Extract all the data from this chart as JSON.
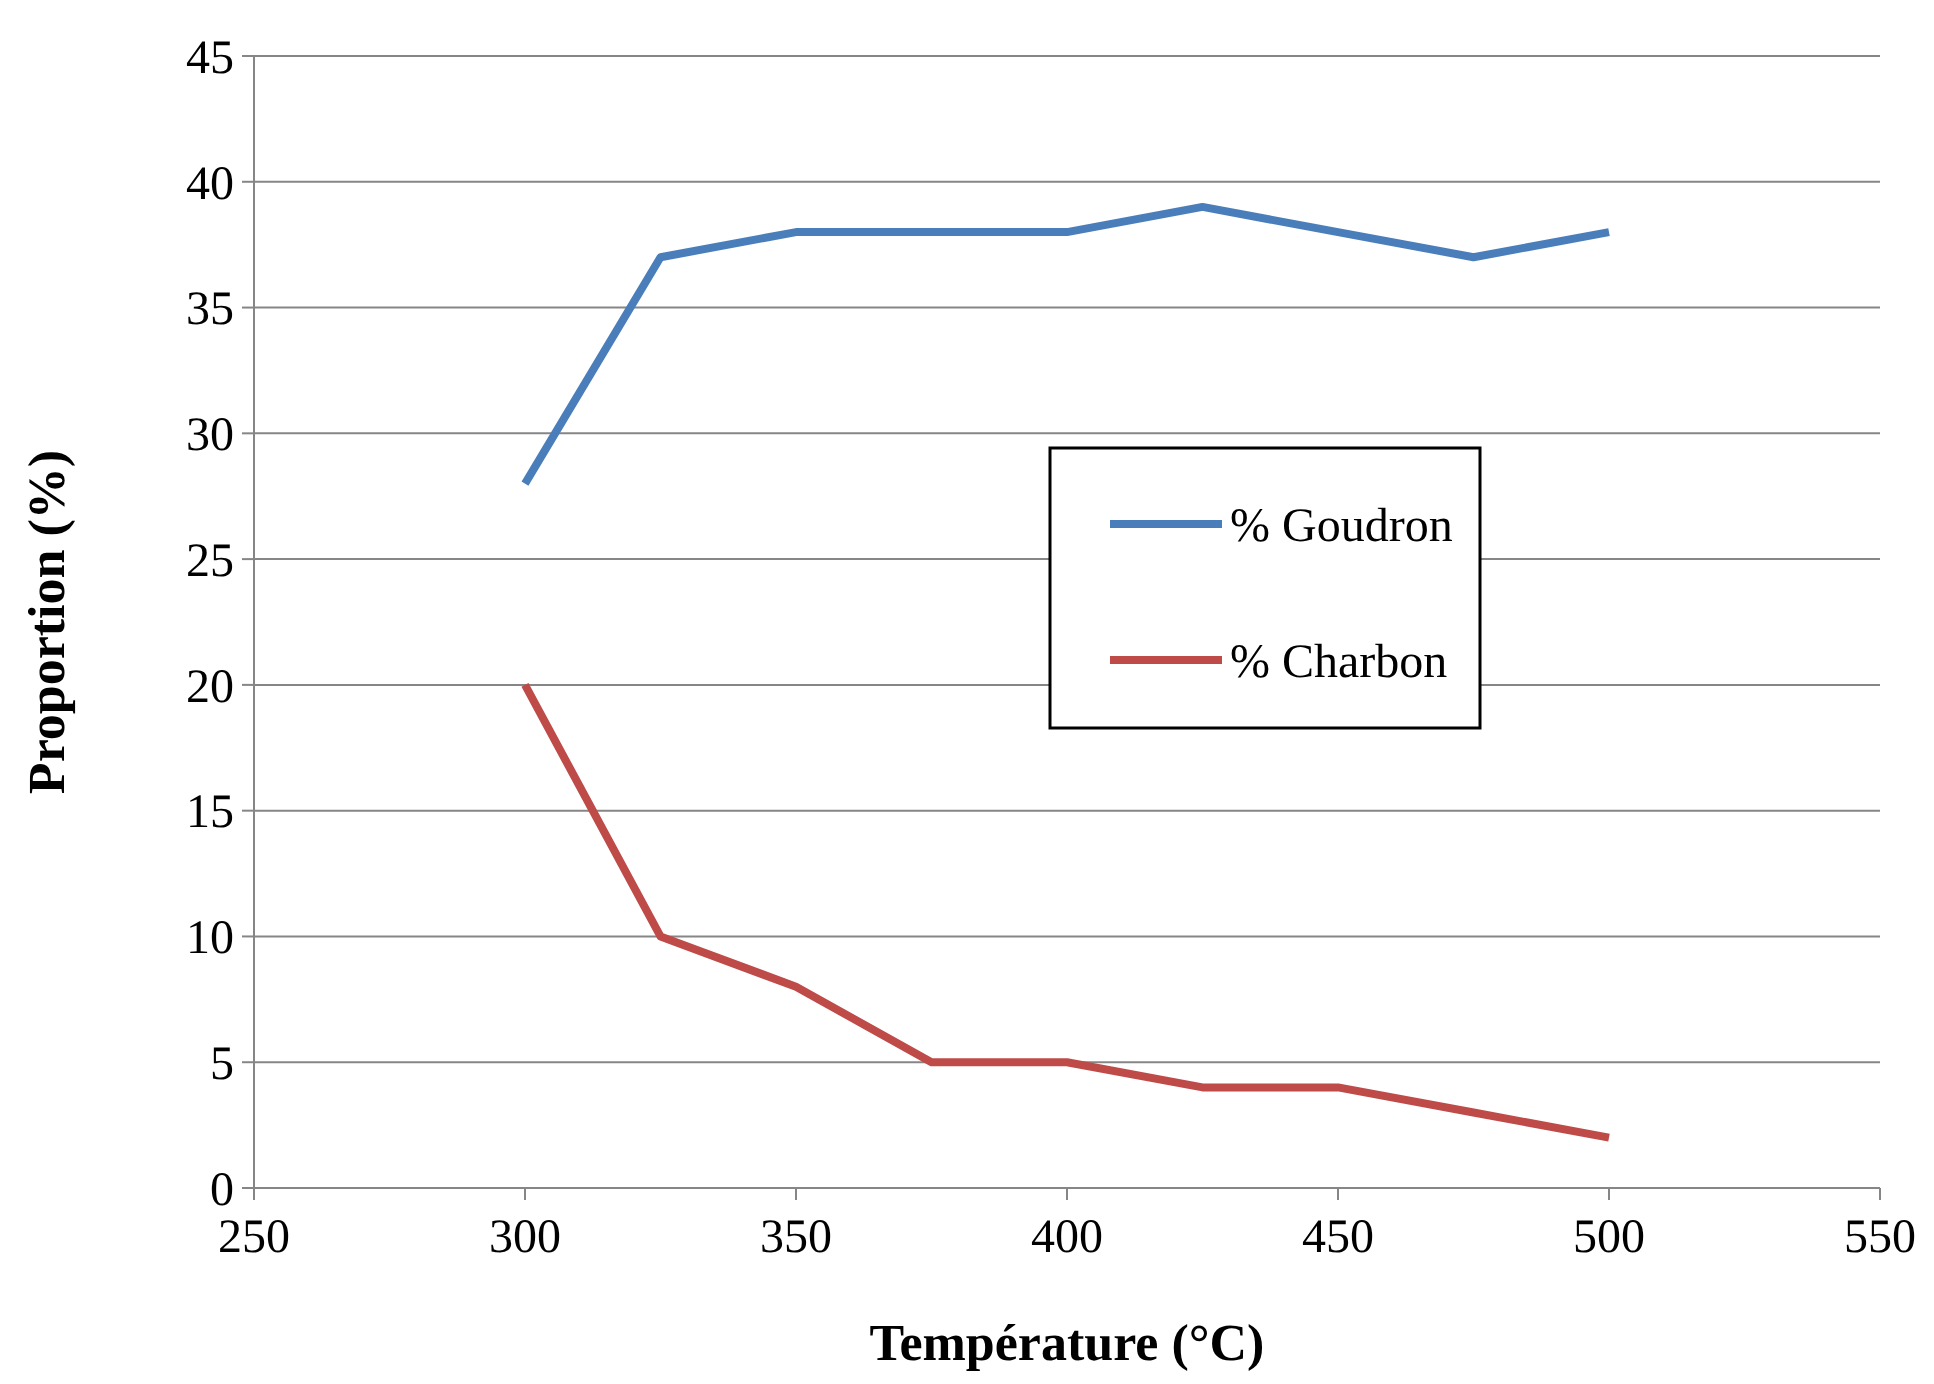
{
  "chart_data": {
    "type": "line",
    "xlabel": "Température (°C)",
    "ylabel": "Proportion (%)",
    "x": [
      300,
      325,
      350,
      375,
      400,
      425,
      450,
      475,
      500
    ],
    "series": [
      {
        "name": "% Goudron",
        "color": "#4a7ebb",
        "values": [
          28,
          37,
          38,
          38,
          38,
          39,
          38,
          37,
          38
        ]
      },
      {
        "name": "% Charbon",
        "color": "#be4b48",
        "values": [
          20,
          10,
          8,
          5,
          5,
          4,
          4,
          3,
          2
        ]
      }
    ],
    "xlim": [
      250,
      550
    ],
    "xticks": [
      250,
      300,
      350,
      400,
      450,
      500,
      550
    ],
    "ylim": [
      0,
      45
    ],
    "yticks": [
      0,
      5,
      10,
      15,
      20,
      25,
      30,
      35,
      40,
      45
    ],
    "grid": "y",
    "legend": "right",
    "marker": "none",
    "line_style": "solid"
  }
}
